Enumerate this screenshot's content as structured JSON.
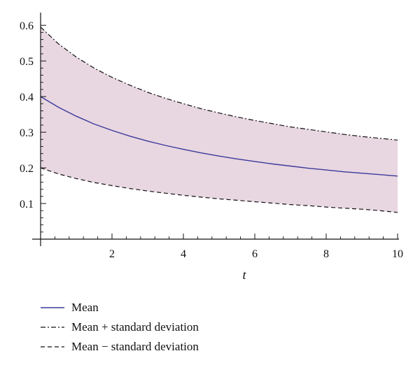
{
  "chart_data": {
    "type": "line",
    "title": "",
    "xlabel": "t",
    "ylabel": "",
    "xlim": [
      0,
      10
    ],
    "ylim": [
      0,
      0.62
    ],
    "x_ticks": [
      2,
      4,
      6,
      8,
      10
    ],
    "y_ticks": [
      0.1,
      0.2,
      0.3,
      0.4,
      0.5,
      0.6
    ],
    "x_tick_labels": [
      "2",
      "4",
      "6",
      "8",
      "10"
    ],
    "y_tick_labels": [
      "0.1",
      "0.2",
      "0.3",
      "0.4",
      "0.5",
      "0.6"
    ],
    "grid": false,
    "legend_position": "bottom-left",
    "x": [
      0,
      0.5,
      1,
      1.5,
      2,
      2.5,
      3,
      3.5,
      4,
      4.5,
      5,
      5.5,
      6,
      6.5,
      7,
      7.5,
      8,
      8.5,
      9,
      9.5,
      10
    ],
    "series": [
      {
        "name": "Mean",
        "style": "solid",
        "color": "#3b3a9a",
        "values": [
          0.4,
          0.37,
          0.345,
          0.323,
          0.305,
          0.289,
          0.275,
          0.263,
          0.252,
          0.242,
          0.233,
          0.225,
          0.218,
          0.211,
          0.205,
          0.199,
          0.194,
          0.189,
          0.185,
          0.181,
          0.177
        ]
      },
      {
        "name": "Mean + standard deviation",
        "style": "dashdot",
        "color": "#111111",
        "values": [
          0.595,
          0.548,
          0.511,
          0.48,
          0.454,
          0.432,
          0.412,
          0.395,
          0.38,
          0.366,
          0.354,
          0.343,
          0.333,
          0.324,
          0.315,
          0.308,
          0.301,
          0.294,
          0.288,
          0.283,
          0.278
        ]
      },
      {
        "name": "Mean − standard deviation",
        "style": "dashed",
        "color": "#111111",
        "values": [
          0.2,
          0.183,
          0.17,
          0.159,
          0.15,
          0.142,
          0.135,
          0.129,
          0.123,
          0.118,
          0.113,
          0.109,
          0.105,
          0.101,
          0.097,
          0.094,
          0.09,
          0.087,
          0.084,
          0.08,
          0.075
        ]
      }
    ],
    "band_fill_color": "#e8d6e1"
  }
}
